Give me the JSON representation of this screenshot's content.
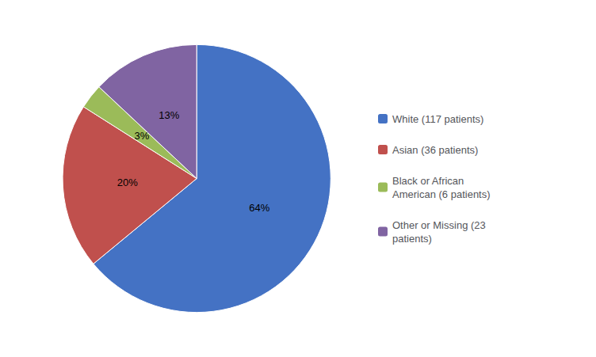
{
  "chart_data": {
    "type": "pie",
    "categories": [
      "White (117 patients)",
      "Asian (36 patients)",
      "Black or African\nAmerican (6 patients)",
      "Other or Missing (23\npatients)"
    ],
    "values": [
      64,
      20,
      3,
      13
    ],
    "value_labels": [
      "64%",
      "20%",
      "3%",
      "13%"
    ],
    "colors": [
      "#4472c4",
      "#c0504d",
      "#9bbb59",
      "#8064a2"
    ],
    "data_labels": true,
    "legend": "right"
  }
}
